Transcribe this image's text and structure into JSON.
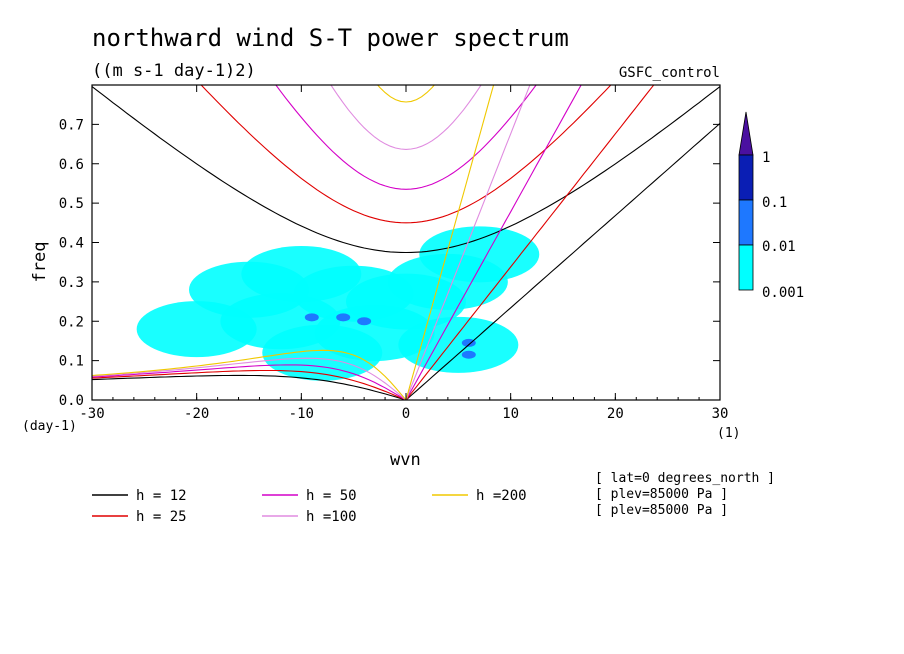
{
  "chart_data": {
    "type": "heatmap",
    "title": "northward wind S-T power spectrum",
    "subtitle": "((m s-1 day-1)2)",
    "run_label": "GSFC_control",
    "xlabel": "wvn",
    "ylabel": "freq",
    "x_unit": "(1)",
    "y_unit": "(day-1)",
    "xlim": [
      -30,
      30
    ],
    "ylim": [
      0,
      0.8
    ],
    "x_ticks": [
      -30,
      -20,
      -10,
      0,
      10,
      20,
      30
    ],
    "x_tick_labels": [
      "-30",
      "-20",
      "-10",
      "0",
      "10",
      "20",
      "30"
    ],
    "y_ticks": [
      0,
      0.1,
      0.2,
      0.3,
      0.4,
      0.5,
      0.6,
      0.7
    ],
    "y_tick_labels": [
      "0.0",
      "0.1",
      "0.2",
      "0.3",
      "0.4",
      "0.5",
      "0.6",
      "0.7"
    ],
    "colorbar": {
      "levels": [
        0.001,
        0.01,
        0.1,
        1
      ],
      "labels": [
        "0.001",
        "0.01",
        "0.1",
        "1"
      ],
      "colors": [
        "#00ffff",
        "#1e78ff",
        "#0a1eb4",
        "#4a10a0"
      ]
    },
    "spectrum_patches": [
      {
        "k": -15,
        "f": 0.28,
        "level": 0
      },
      {
        "k": -10,
        "f": 0.32,
        "level": 0
      },
      {
        "k": -5,
        "f": 0.27,
        "level": 0
      },
      {
        "k": 0,
        "f": 0.25,
        "level": 0
      },
      {
        "k": 4,
        "f": 0.3,
        "level": 0
      },
      {
        "k": -20,
        "f": 0.18,
        "level": 0
      },
      {
        "k": -12,
        "f": 0.2,
        "level": 0
      },
      {
        "k": -3,
        "f": 0.17,
        "level": 0
      },
      {
        "k": 5,
        "f": 0.14,
        "level": 0
      },
      {
        "k": -8,
        "f": 0.12,
        "level": 0
      },
      {
        "k": 7,
        "f": 0.37,
        "level": 0
      },
      {
        "k": -9,
        "f": 0.21,
        "level": 1
      },
      {
        "k": -6,
        "f": 0.21,
        "level": 1
      },
      {
        "k": -4,
        "f": 0.2,
        "level": 1
      },
      {
        "k": 6,
        "f": 0.145,
        "level": 1
      },
      {
        "k": 6,
        "f": 0.115,
        "level": 1
      }
    ],
    "series": [
      {
        "name": "h = 12",
        "color": "#000000",
        "equivalent_depth": 12
      },
      {
        "name": "h = 25",
        "color": "#e00000",
        "equivalent_depth": 25
      },
      {
        "name": "h = 50",
        "color": "#d400c8",
        "equivalent_depth": 50
      },
      {
        "name": "h =100",
        "color": "#e08ce0",
        "equivalent_depth": 100
      },
      {
        "name": "h =200",
        "color": "#f0c800",
        "equivalent_depth": 200
      }
    ],
    "annotations": [
      "[ lat=0 degrees_north ]",
      "[ plev=85000 Pa ]",
      "[ plev=85000 Pa ]"
    ]
  }
}
